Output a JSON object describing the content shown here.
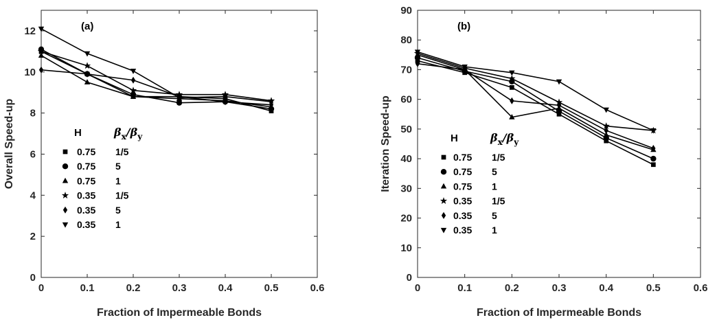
{
  "chart_data": [
    {
      "type": "line",
      "panel_label": "(a)",
      "xlabel": "Fraction of Impermeable Bonds",
      "ylabel": "Overall Speed-up",
      "xlim": [
        0,
        0.6
      ],
      "ylim": [
        0,
        13
      ],
      "xticks": [
        "0",
        "0.1",
        "0.2",
        "0.3",
        "0.4",
        "0.5",
        "0.6"
      ],
      "yticks": [
        "0",
        "2",
        "4",
        "6",
        "8",
        "10",
        "12"
      ],
      "x": [
        0,
        0.1,
        0.2,
        0.3,
        0.4,
        0.5
      ],
      "legend": {
        "header_h": "H",
        "header_ratio": "β",
        "header_ratio_sub_x": "x",
        "header_ratio_slash": "/β",
        "header_ratio_sub_y": "y"
      },
      "series": [
        {
          "h": "0.75",
          "ratio": "1/5",
          "marker": "square",
          "values": [
            11.0,
            9.9,
            8.8,
            8.8,
            8.7,
            8.1
          ]
        },
        {
          "h": "0.75",
          "ratio": "5",
          "marker": "circle",
          "values": [
            11.1,
            9.9,
            8.9,
            8.5,
            8.55,
            8.2
          ]
        },
        {
          "h": "0.75",
          "ratio": "1",
          "marker": "triangle-up",
          "values": [
            10.8,
            9.5,
            8.8,
            8.7,
            8.6,
            8.3
          ]
        },
        {
          "h": "0.35",
          "ratio": "1/5",
          "marker": "star",
          "values": [
            11.0,
            10.3,
            9.1,
            8.9,
            8.9,
            8.6
          ]
        },
        {
          "h": "0.35",
          "ratio": "5",
          "marker": "diamond",
          "values": [
            10.1,
            9.9,
            9.6,
            8.8,
            8.55,
            8.4
          ]
        },
        {
          "h": "0.35",
          "ratio": "1",
          "marker": "triangle-down",
          "values": [
            12.1,
            10.9,
            10.05,
            8.75,
            8.8,
            8.55
          ]
        }
      ]
    },
    {
      "type": "line",
      "panel_label": "(b)",
      "xlabel": "Fraction of Impermeable Bonds",
      "ylabel": "Iteration Speed-up",
      "xlim": [
        0,
        0.6
      ],
      "ylim": [
        0,
        90
      ],
      "xticks": [
        "0",
        "0.1",
        "0.2",
        "0.3",
        "0.4",
        "0.5",
        "0.6"
      ],
      "yticks": [
        "0",
        "10",
        "20",
        "30",
        "40",
        "50",
        "60",
        "70",
        "80",
        "90"
      ],
      "x": [
        0,
        0.1,
        0.2,
        0.3,
        0.4,
        0.5
      ],
      "legend": {
        "header_h": "H",
        "header_ratio": "β",
        "header_ratio_sub_x": "x",
        "header_ratio_slash": "/β",
        "header_ratio_sub_y": "y"
      },
      "series": [
        {
          "h": "0.75",
          "ratio": "1/5",
          "marker": "square",
          "values": [
            73,
            69,
            64,
            55,
            46,
            38
          ]
        },
        {
          "h": "0.75",
          "ratio": "5",
          "marker": "circle",
          "values": [
            74,
            69.5,
            66,
            56,
            47,
            40
          ]
        },
        {
          "h": "0.75",
          "ratio": "1",
          "marker": "triangle-up",
          "values": [
            75,
            70,
            54,
            57,
            48,
            43
          ]
        },
        {
          "h": "0.35",
          "ratio": "1/5",
          "marker": "star",
          "values": [
            75.5,
            70.5,
            67,
            59,
            51,
            49.5
          ]
        },
        {
          "h": "0.35",
          "ratio": "5",
          "marker": "diamond",
          "values": [
            72,
            70,
            59.5,
            58,
            49.5,
            43.5
          ]
        },
        {
          "h": "0.35",
          "ratio": "1",
          "marker": "triangle-down",
          "values": [
            76,
            71,
            69,
            66,
            56.5,
            49.5
          ]
        }
      ]
    }
  ]
}
